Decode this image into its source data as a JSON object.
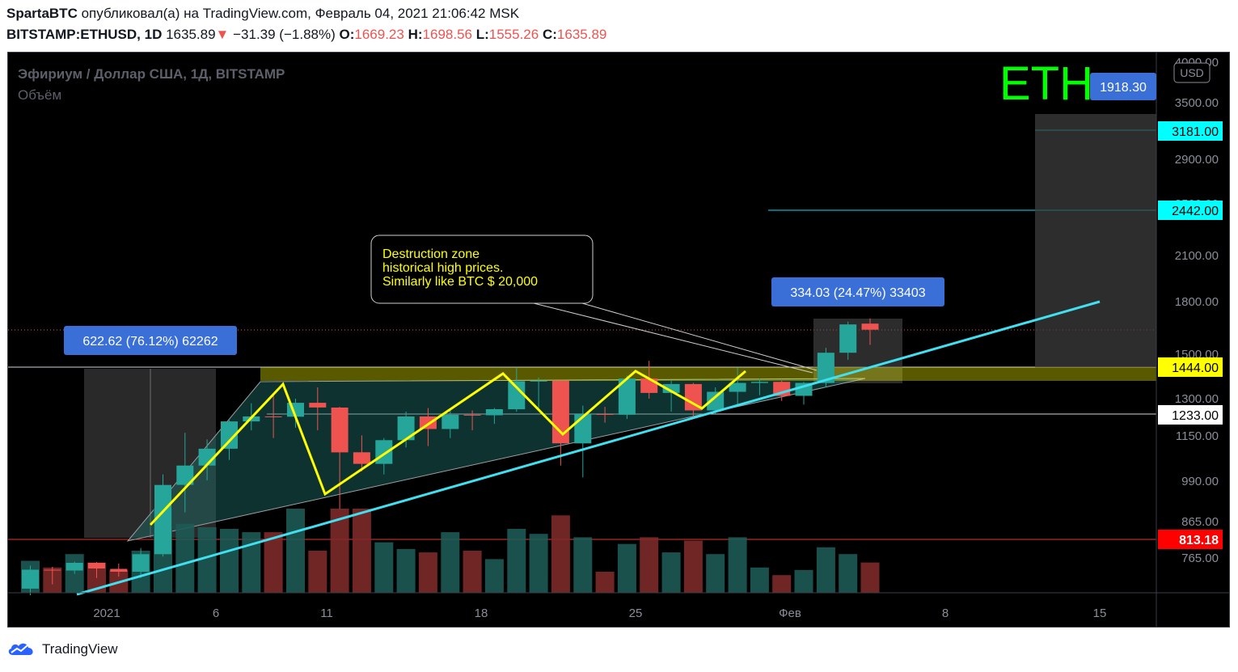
{
  "header": {
    "author": "SpartaBTC",
    "published_text": "опубликовал(а) на TradingView.com, Февраль 04, 2021 21:06:42 MSK",
    "symbol": "BITSTAMP:ETHUSD, 1D",
    "last": "1635.89",
    "change_arrow": "▼",
    "change": "−31.39 (−1.88%)",
    "open_label": "O:",
    "open": "1669.23",
    "high_label": "H:",
    "high": "1698.56",
    "low_label": "L:",
    "low": "1555.26",
    "close_label": "C:",
    "close": "1635.89"
  },
  "legend": {
    "instrument": "Эфириум / Доллар США, 1Д, BITSTAMP",
    "volume": "Объём"
  },
  "watermark": "ETH",
  "currency_button": "USD",
  "price_tags": {
    "top": "1918.30",
    "level_3181": "3181.00",
    "level_2442": "2442.00",
    "level_1444": "1444.00",
    "level_1233": "1233.00",
    "level_813": "813.18"
  },
  "annotations": {
    "callout_lines": [
      "Destruction zone",
      "historical high prices.",
      "Similarly like BTC $ 20,000"
    ],
    "range_left": "622.62 (76.12%) 62262",
    "range_right": "334.03 (24.47%) 33403"
  },
  "footer": {
    "brand": "TradingView"
  },
  "colors": {
    "up": "#26a69a",
    "down": "#ef5350",
    "zigzag": "#ffff00",
    "trendline": "#40e0f0",
    "zone": "#ffff00",
    "watermark": "#00ff00",
    "tag_blue": "#3a6fd8",
    "tag_cyan": "#00ffff",
    "tag_red": "#ff0000"
  },
  "chart_data": {
    "type": "candlestick",
    "y_scale": "log",
    "y_ticks": [
      "4000.00",
      "3500.00",
      "2900.00",
      "2500.00",
      "2100.00",
      "1800.00",
      "1500.00",
      "1300.00",
      "1150.00",
      "990.00",
      "865.00",
      "765.00"
    ],
    "y_tick_values": [
      4000,
      3500,
      2900,
      2500,
      2100,
      1800,
      1500,
      1300,
      1150,
      990,
      865,
      765
    ],
    "x_ticks": [
      "2021",
      "6",
      "11",
      "18",
      "25",
      "Фев",
      "8",
      "15"
    ],
    "x_tick_dates": [
      "2021-01-01",
      "2021-01-06",
      "2021-01-11",
      "2021-01-18",
      "2021-01-25",
      "2021-02-01",
      "2021-02-08",
      "2021-02-15"
    ],
    "candles": [
      {
        "date": "2020-12-28",
        "o": 690,
        "h": 745,
        "l": 675,
        "c": 735
      },
      {
        "date": "2020-12-29",
        "o": 735,
        "h": 742,
        "l": 700,
        "c": 733
      },
      {
        "date": "2020-12-30",
        "o": 733,
        "h": 755,
        "l": 725,
        "c": 752
      },
      {
        "date": "2020-12-31",
        "o": 752,
        "h": 754,
        "l": 715,
        "c": 738
      },
      {
        "date": "2021-01-01",
        "o": 737,
        "h": 750,
        "l": 718,
        "c": 730
      },
      {
        "date": "2021-01-02",
        "o": 730,
        "h": 790,
        "l": 715,
        "c": 774
      },
      {
        "date": "2021-01-03",
        "o": 774,
        "h": 1010,
        "l": 768,
        "c": 975
      },
      {
        "date": "2021-01-04",
        "o": 975,
        "h": 1160,
        "l": 890,
        "c": 1040
      },
      {
        "date": "2021-01-05",
        "o": 1040,
        "h": 1135,
        "l": 990,
        "c": 1100
      },
      {
        "date": "2021-01-06",
        "o": 1100,
        "h": 1210,
        "l": 1060,
        "c": 1205
      },
      {
        "date": "2021-01-07",
        "o": 1205,
        "h": 1280,
        "l": 1170,
        "c": 1225
      },
      {
        "date": "2021-01-08",
        "o": 1225,
        "h": 1320,
        "l": 1140,
        "c": 1224
      },
      {
        "date": "2021-01-09",
        "o": 1224,
        "h": 1300,
        "l": 1180,
        "c": 1282
      },
      {
        "date": "2021-01-10",
        "o": 1282,
        "h": 1350,
        "l": 1170,
        "c": 1262
      },
      {
        "date": "2021-01-11",
        "o": 1262,
        "h": 1265,
        "l": 900,
        "c": 1087
      },
      {
        "date": "2021-01-12",
        "o": 1087,
        "h": 1150,
        "l": 1020,
        "c": 1046
      },
      {
        "date": "2021-01-13",
        "o": 1046,
        "h": 1140,
        "l": 1010,
        "c": 1132
      },
      {
        "date": "2021-01-14",
        "o": 1132,
        "h": 1245,
        "l": 1105,
        "c": 1225
      },
      {
        "date": "2021-01-15",
        "o": 1225,
        "h": 1260,
        "l": 1110,
        "c": 1175
      },
      {
        "date": "2021-01-16",
        "o": 1175,
        "h": 1255,
        "l": 1140,
        "c": 1232
      },
      {
        "date": "2021-01-17",
        "o": 1232,
        "h": 1250,
        "l": 1170,
        "c": 1230
      },
      {
        "date": "2021-01-18",
        "o": 1230,
        "h": 1260,
        "l": 1195,
        "c": 1255
      },
      {
        "date": "2021-01-19",
        "o": 1255,
        "h": 1440,
        "l": 1245,
        "c": 1378
      },
      {
        "date": "2021-01-20",
        "o": 1378,
        "h": 1395,
        "l": 1255,
        "c": 1380
      },
      {
        "date": "2021-01-21",
        "o": 1380,
        "h": 1381,
        "l": 1040,
        "c": 1120
      },
      {
        "date": "2021-01-22",
        "o": 1120,
        "h": 1270,
        "l": 1000,
        "c": 1235
      },
      {
        "date": "2021-01-23",
        "o": 1235,
        "h": 1265,
        "l": 1200,
        "c": 1232
      },
      {
        "date": "2021-01-24",
        "o": 1232,
        "h": 1405,
        "l": 1215,
        "c": 1390
      },
      {
        "date": "2021-01-25",
        "o": 1390,
        "h": 1475,
        "l": 1300,
        "c": 1325
      },
      {
        "date": "2021-01-26",
        "o": 1325,
        "h": 1380,
        "l": 1245,
        "c": 1365
      },
      {
        "date": "2021-01-27",
        "o": 1365,
        "h": 1370,
        "l": 1225,
        "c": 1250
      },
      {
        "date": "2021-01-28",
        "o": 1250,
        "h": 1350,
        "l": 1235,
        "c": 1330
      },
      {
        "date": "2021-01-29",
        "o": 1330,
        "h": 1440,
        "l": 1270,
        "c": 1370
      },
      {
        "date": "2021-01-30",
        "o": 1370,
        "h": 1390,
        "l": 1315,
        "c": 1375
      },
      {
        "date": "2021-01-31",
        "o": 1375,
        "h": 1380,
        "l": 1290,
        "c": 1312
      },
      {
        "date": "2021-02-01",
        "o": 1312,
        "h": 1375,
        "l": 1275,
        "c": 1370
      },
      {
        "date": "2021-02-02",
        "o": 1370,
        "h": 1540,
        "l": 1350,
        "c": 1515
      },
      {
        "date": "2021-02-03",
        "o": 1515,
        "h": 1680,
        "l": 1480,
        "c": 1665
      },
      {
        "date": "2021-02-04",
        "o": 1669.23,
        "h": 1698.56,
        "l": 1555.26,
        "c": 1635.89
      }
    ],
    "volume": [
      0.38,
      0.3,
      0.46,
      0.36,
      0.27,
      0.5,
      1.0,
      0.82,
      0.78,
      0.76,
      0.72,
      0.72,
      1.0,
      0.5,
      1.0,
      1.0,
      0.6,
      0.52,
      0.48,
      0.72,
      0.5,
      0.4,
      0.76,
      0.7,
      0.92,
      0.66,
      0.25,
      0.58,
      0.66,
      0.48,
      0.62,
      0.46,
      0.66,
      0.3,
      0.21,
      0.27,
      0.54,
      0.46,
      0.36
    ],
    "horizontal_levels": [
      1444,
      1233,
      813.18
    ],
    "zone": {
      "from": 1390,
      "to": 1444
    }
  }
}
